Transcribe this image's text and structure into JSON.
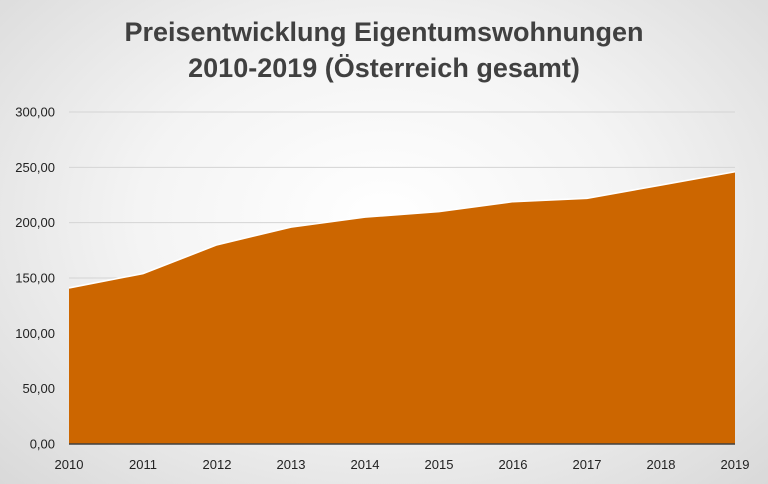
{
  "chart_data": {
    "type": "area",
    "title_lines": [
      "Preisentwicklung Eigentumswohnungen",
      "2010-2019 (Österreich gesamt)"
    ],
    "x": [
      "2010",
      "2011",
      "2012",
      "2013",
      "2014",
      "2015",
      "2016",
      "2017",
      "2018",
      "2019"
    ],
    "series": [
      {
        "values": [
          141,
          154,
          180,
          196,
          205,
          210,
          219,
          222,
          234,
          246
        ]
      }
    ],
    "y_ticks": [
      "0,00",
      "50,00",
      "100,00",
      "150,00",
      "200,00",
      "250,00",
      "300,00"
    ],
    "ylim": [
      0,
      300
    ],
    "grid": true,
    "legend": "none",
    "colors": {
      "area": "#cc6600",
      "outline": "#ffffff",
      "grid": "#d4d4d4",
      "axis": "#404040"
    }
  }
}
